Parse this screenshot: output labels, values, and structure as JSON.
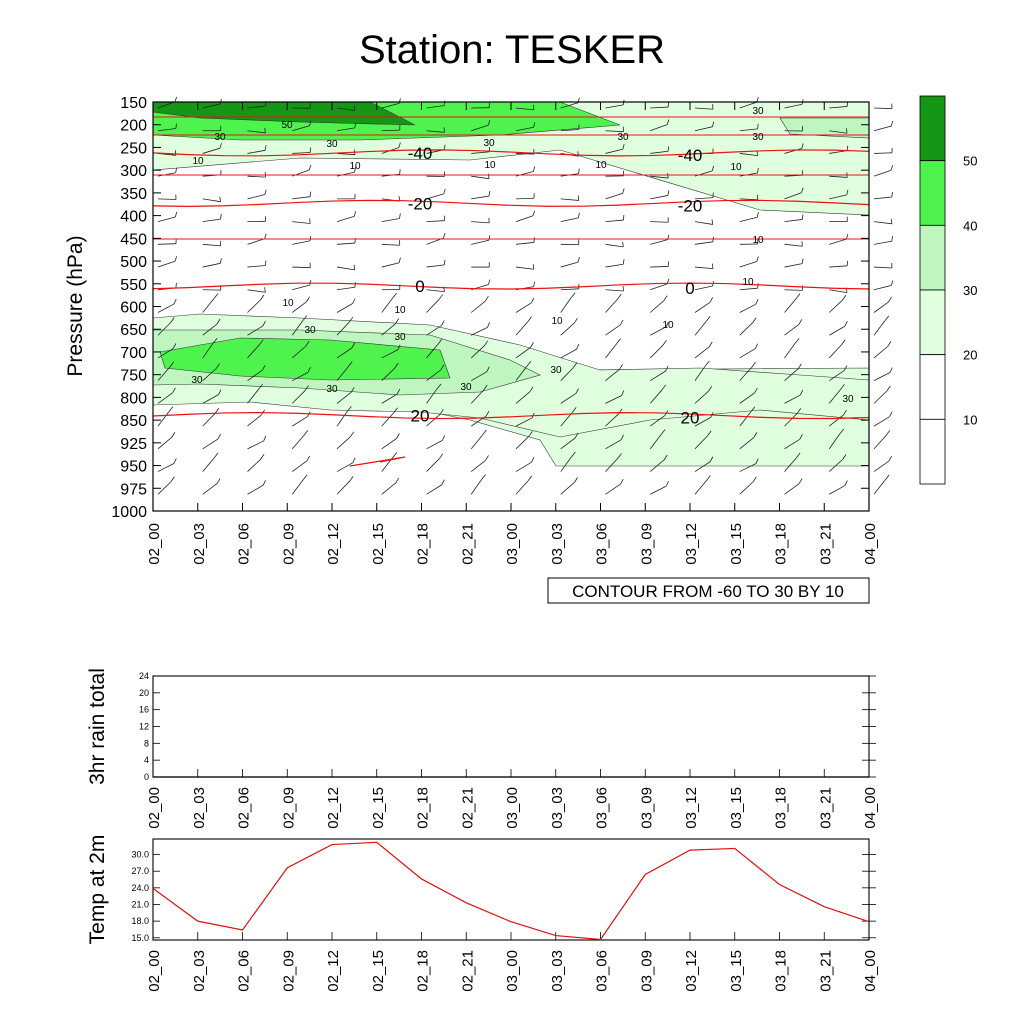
{
  "chart_data": [
    {
      "type": "heatmap",
      "title": "Station: TESKER",
      "ylabel": "Pressure (hPa)",
      "x_ticks": [
        "02_00",
        "02_03",
        "02_06",
        "02_09",
        "02_12",
        "02_15",
        "02_18",
        "02_21",
        "03_00",
        "03_03",
        "03_06",
        "03_09",
        "03_12",
        "03_15",
        "03_18",
        "03_21",
        "04_00"
      ],
      "y_ticks": [
        "150",
        "200",
        "250",
        "300",
        "350",
        "400",
        "450",
        "500",
        "550",
        "600",
        "650",
        "700",
        "750",
        "800",
        "850",
        "925",
        "950",
        "975",
        "1000"
      ],
      "contour_info": "CONTOUR FROM -60 TO 30 BY 10",
      "colorbar": {
        "levels": [
          "10",
          "20",
          "30",
          "40",
          "50"
        ],
        "colors": [
          "#ffffff",
          "#ffffff",
          "#dfffdf",
          "#bff5bf",
          "#4ef34e",
          "#159615"
        ]
      },
      "temperature_contours": [
        {
          "label": "-40",
          "pressure": 262
        },
        {
          "label": "-20",
          "pressure": 373
        },
        {
          "label": "0",
          "pressure": 555
        },
        {
          "label": "20",
          "pressure": 840
        }
      ],
      "wind_speed_labels": [
        "50",
        "30",
        "30",
        "30",
        "30",
        "30",
        "30",
        "10",
        "10",
        "10",
        "10",
        "10",
        "10",
        "10",
        "10",
        "10",
        "10",
        "10",
        "30",
        "30",
        "30",
        "30",
        "30",
        "30",
        "30"
      ],
      "shading": [
        {
          "level": 50,
          "region": "jet core 150-200 hPa, 02_00 to 02_18"
        },
        {
          "level": 40,
          "region": "150-230 hPa, 02_00 to 03_06; 650-780 hPa, 02_00 to 02_18"
        },
        {
          "level": 30,
          "region": "upper jet 150-260 hPa; 620-800 hPa low-level jet"
        },
        {
          "level": 20,
          "region": "750-950 hPa, 03_03 to 04_00"
        }
      ]
    },
    {
      "type": "line",
      "ylabel": "3hr rain total",
      "x": [
        "02_00",
        "02_03",
        "02_06",
        "02_09",
        "02_12",
        "02_15",
        "02_18",
        "02_21",
        "03_00",
        "03_03",
        "03_06",
        "03_09",
        "03_12",
        "03_15",
        "03_18",
        "03_21",
        "04_00"
      ],
      "y_ticks": [
        "0",
        "4",
        "8",
        "12",
        "16",
        "20",
        "24"
      ],
      "ylim": [
        0,
        24
      ],
      "values": [
        0,
        0,
        0,
        0,
        0,
        0,
        0,
        0,
        0,
        0,
        0,
        0,
        0,
        0,
        0,
        0,
        0
      ]
    },
    {
      "type": "line",
      "ylabel": "Temp at 2m",
      "x": [
        "02_00",
        "02_03",
        "02_06",
        "02_09",
        "02_12",
        "02_15",
        "02_18",
        "02_21",
        "03_00",
        "03_03",
        "03_06",
        "03_09",
        "03_12",
        "03_15",
        "03_18",
        "03_21",
        "04_00"
      ],
      "y_ticks": [
        "15.0",
        "18.0",
        "21.0",
        "24.0",
        "27.0",
        "30.0"
      ],
      "ylim": [
        14.6,
        32.8
      ],
      "line_color": "#e01010",
      "values": [
        23.9,
        18.0,
        16.4,
        27.6,
        31.8,
        32.2,
        25.6,
        21.3,
        17.9,
        15.4,
        14.7,
        26.4,
        30.8,
        31.1,
        24.6,
        20.6,
        17.9
      ]
    }
  ]
}
